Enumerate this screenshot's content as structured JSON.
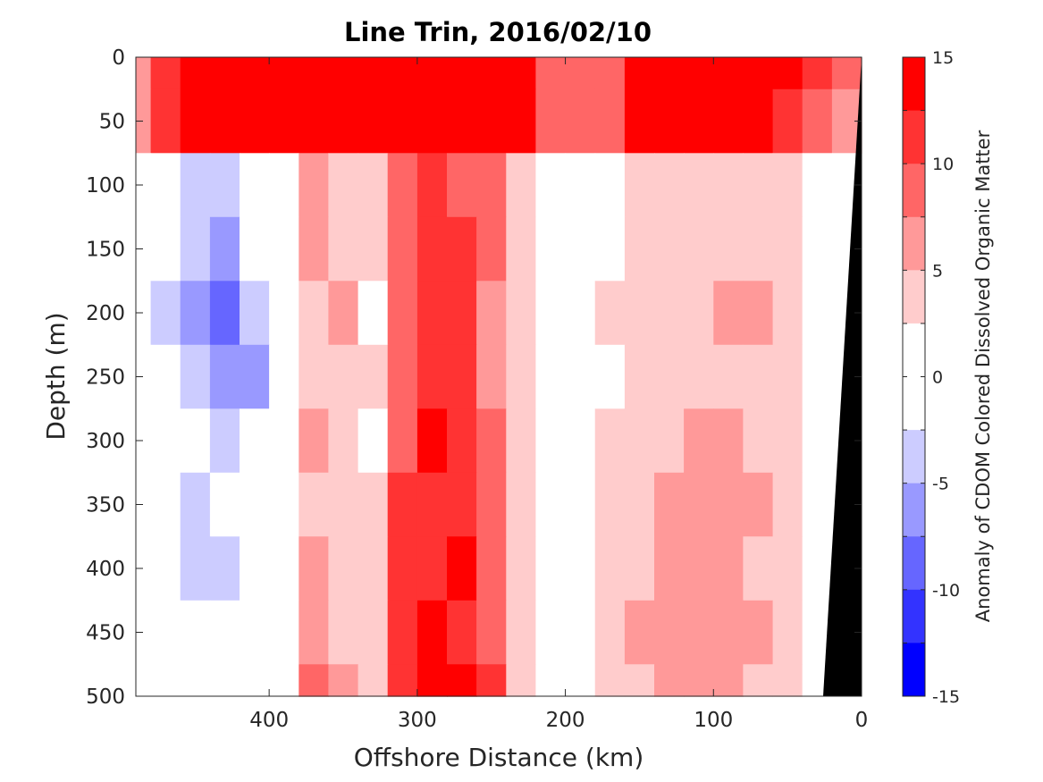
{
  "chart_data": {
    "type": "heatmap",
    "title": "Line Trin, 2016/02/10",
    "xlabel": "Offshore Distance (km)",
    "ylabel": "Depth (m)",
    "colorbar_label": "Anomaly of CDOM Colored Dissolved Organic Matter",
    "xlim": [
      490,
      0
    ],
    "ylim": [
      0,
      500
    ],
    "y_reversed": true,
    "x_reversed": true,
    "x_ticks": [
      400,
      300,
      200,
      100,
      0
    ],
    "x_tick_labels": [
      "400",
      "300",
      "200",
      "100",
      "0"
    ],
    "y_ticks": [
      0,
      50,
      100,
      150,
      200,
      250,
      300,
      350,
      400,
      450,
      500
    ],
    "y_tick_labels": [
      "0",
      "50",
      "100",
      "150",
      "200",
      "250",
      "300",
      "350",
      "400",
      "450",
      "500"
    ],
    "clim": [
      -15,
      15
    ],
    "colorbar_ticks": [
      15,
      10,
      5,
      0,
      -5,
      -10,
      -15
    ],
    "colorbar_tick_labels": [
      "15",
      "10",
      "5",
      "0",
      "-5",
      "-10",
      "-15"
    ],
    "levels": [
      15,
      12.5,
      10,
      7.5,
      5,
      2.5,
      0,
      -2.5,
      -5,
      -7.5,
      -10,
      -12.5,
      -15
    ],
    "level_colors": [
      "#ff0000",
      "#ff3333",
      "#ff6666",
      "#ff9999",
      "#ffcccc",
      "#ffffff",
      "#ffffff",
      "#ccccff",
      "#9999ff",
      "#6666ff",
      "#3333ff",
      "#0000ff"
    ],
    "bottom_color": "#000000",
    "x_grid_km": [
      490,
      470,
      450,
      430,
      410,
      390,
      370,
      350,
      330,
      310,
      290,
      270,
      250,
      230,
      210,
      190,
      170,
      150,
      130,
      110,
      90,
      70,
      50,
      30,
      10
    ],
    "y_grid_m": [
      0,
      50,
      100,
      150,
      200,
      250,
      300,
      350,
      400,
      450,
      500
    ],
    "z": [
      [
        7,
        12,
        14,
        14,
        14,
        14,
        14,
        14,
        14,
        14,
        14,
        14,
        14,
        14,
        10,
        8,
        9,
        14,
        14,
        14,
        14,
        14,
        14,
        12,
        9
      ],
      [
        6,
        12,
        14,
        14,
        14,
        14,
        14,
        14,
        14,
        14,
        14,
        14,
        14,
        13,
        10,
        8,
        9,
        13,
        14,
        14,
        14,
        14,
        12,
        10,
        7
      ],
      [
        1,
        -2,
        -3,
        -3,
        -1,
        1,
        6,
        4,
        3,
        8,
        11,
        10,
        9,
        4,
        -1,
        0,
        1,
        3,
        3,
        3,
        3,
        3,
        4,
        1,
        1
      ],
      [
        1,
        -2,
        -4,
        -5,
        -2,
        0,
        7,
        5,
        3,
        9,
        12,
        11,
        9,
        4,
        1,
        1,
        1,
        3,
        3,
        4,
        4,
        3,
        3,
        1,
        1
      ],
      [
        1,
        -3,
        -5,
        -8,
        -3,
        0,
        5,
        6,
        2,
        9,
        12,
        11,
        6,
        3,
        1,
        2,
        3,
        3,
        3,
        5,
        6,
        6,
        3,
        1,
        1
      ],
      [
        1,
        -2,
        -4,
        -6,
        -5,
        0,
        4,
        5,
        3,
        9,
        12,
        11,
        7,
        3,
        1,
        1,
        2,
        3,
        4,
        5,
        4,
        4,
        3,
        1,
        1
      ],
      [
        0,
        -1,
        -2,
        -4,
        -2,
        1,
        6,
        4,
        2,
        10,
        13,
        12,
        10,
        4,
        0,
        2,
        3,
        4,
        5,
        6,
        7,
        5,
        4,
        2,
        1
      ],
      [
        0,
        -1,
        -3,
        -2,
        -1,
        2,
        5,
        3,
        4,
        11,
        12,
        12,
        9,
        3,
        1,
        2,
        3,
        5,
        6,
        7,
        6,
        6,
        3,
        2,
        1
      ],
      [
        0,
        -1,
        -3,
        -3,
        -1,
        1,
        7,
        4,
        3,
        11,
        12,
        13,
        9,
        3,
        1,
        2,
        4,
        5,
        6,
        7,
        6,
        5,
        4,
        2,
        1
      ],
      [
        0,
        -1,
        -2,
        -2,
        -1,
        2,
        6,
        5,
        5,
        12,
        13,
        12,
        10,
        4,
        1,
        2,
        4,
        6,
        6,
        7,
        6,
        6,
        3,
        2,
        1
      ],
      [
        0,
        -1,
        -2,
        -2,
        -1,
        2,
        8,
        6,
        5,
        12,
        13,
        13,
        11,
        5,
        1,
        2,
        4,
        5,
        6,
        7,
        6,
        5,
        4,
        2,
        1
      ]
    ]
  }
}
